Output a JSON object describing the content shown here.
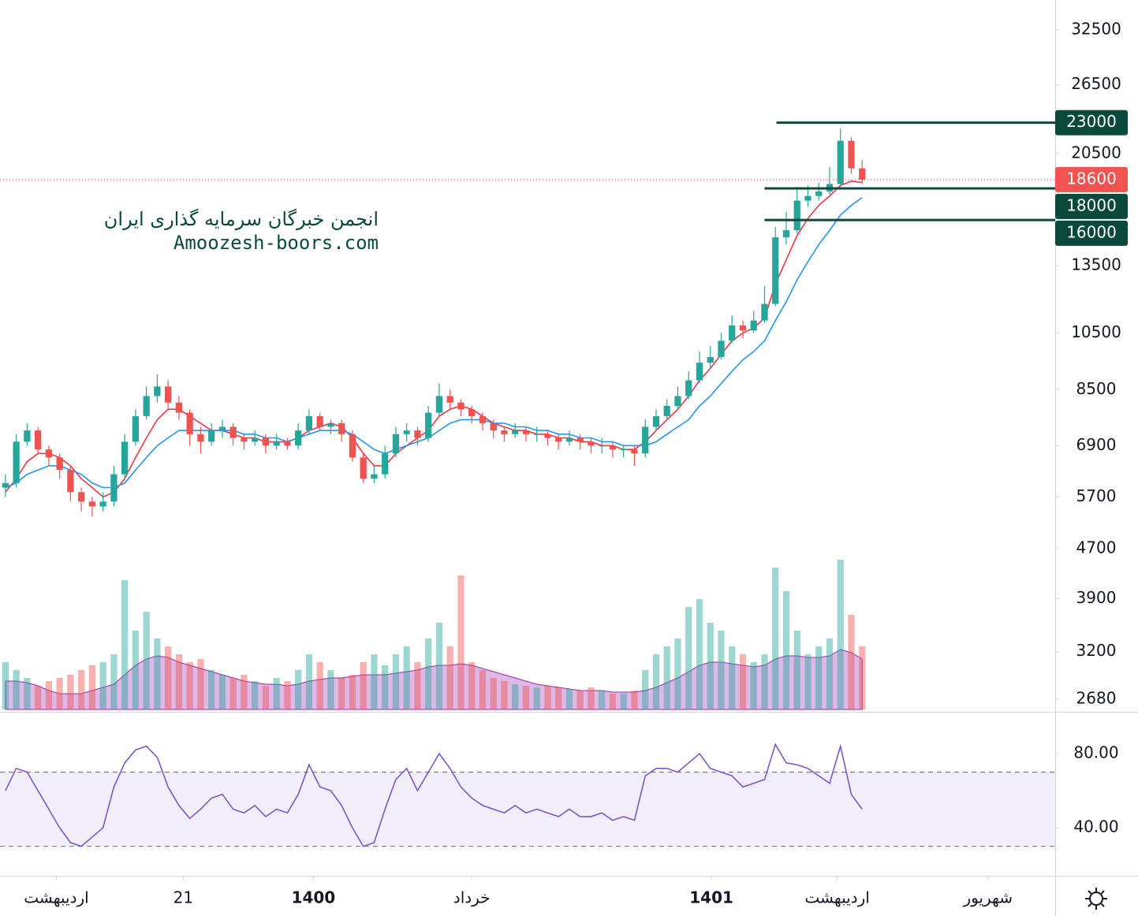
{
  "watermark": {
    "line1": "انجمن خبرگان سرمایه گذاری ایران",
    "line2": "Amoozesh-boors.com"
  },
  "chart_data": [
    {
      "type": "candlestick",
      "log_scale": true,
      "xlim": [
        0,
        97.3
      ],
      "ylim": [
        2557,
        36340
      ],
      "yticks": [
        2680,
        3200,
        3900,
        4700,
        5700,
        6900,
        8500,
        10500,
        13500,
        20500,
        26500,
        32500
      ],
      "up_color": "#26a69a",
      "down_color": "#ef5350",
      "open": [
        5900,
        6000,
        7000,
        7300,
        6800,
        6600,
        6300,
        5800,
        5600,
        5500,
        5600,
        6200,
        7000,
        7700,
        8300,
        8600,
        8100,
        7800,
        7200,
        7000,
        7300,
        7400,
        7100,
        7000,
        7100,
        6900,
        7000,
        6900,
        7300,
        7700,
        7400,
        7500,
        7200,
        6600,
        6100,
        6200,
        6700,
        7200,
        7300,
        7100,
        7800,
        8300,
        8100,
        7900,
        7700,
        7500,
        7300,
        7200,
        7300,
        7200,
        7200,
        7100,
        7000,
        7100,
        7000,
        6900,
        6900,
        6800,
        6800,
        6700,
        7400,
        7700,
        8000,
        8300,
        8800,
        9400,
        9600,
        10200,
        10800,
        10600,
        11000,
        11700,
        15000,
        15400,
        17200,
        17500,
        17800,
        18300,
        21500,
        19400
      ],
      "high": [
        6200,
        7200,
        7500,
        7400,
        6900,
        6700,
        6400,
        5900,
        5700,
        5800,
        6400,
        7200,
        7900,
        8600,
        9000,
        8800,
        8300,
        7900,
        7400,
        7500,
        7600,
        7500,
        7200,
        7300,
        7200,
        7200,
        7100,
        7500,
        7900,
        7800,
        7600,
        7600,
        7300,
        6700,
        6400,
        6900,
        7400,
        7500,
        7400,
        8000,
        8700,
        8500,
        8200,
        8000,
        7800,
        7600,
        7400,
        7500,
        7400,
        7400,
        7300,
        7200,
        7300,
        7200,
        7100,
        7100,
        7000,
        6900,
        6900,
        7600,
        7900,
        8200,
        8600,
        9100,
        9800,
        10000,
        10500,
        11200,
        11000,
        11400,
        12500,
        15600,
        16500,
        18100,
        18200,
        18400,
        19500,
        22500,
        21800,
        20000
      ],
      "low": [
        5700,
        5900,
        6900,
        6700,
        6400,
        6100,
        5600,
        5400,
        5300,
        5400,
        5500,
        6100,
        6900,
        7600,
        8100,
        7900,
        7600,
        6900,
        6700,
        6900,
        7100,
        6900,
        6800,
        6900,
        6700,
        6800,
        6800,
        6800,
        7200,
        7300,
        7200,
        7000,
        6500,
        6000,
        6000,
        6100,
        6600,
        7000,
        6900,
        7000,
        7700,
        7900,
        7700,
        7500,
        7300,
        7100,
        7000,
        7100,
        7000,
        7000,
        6900,
        6800,
        6900,
        6800,
        6700,
        6700,
        6600,
        6600,
        6400,
        6600,
        7300,
        7600,
        7900,
        8200,
        8700,
        9200,
        9500,
        10100,
        10300,
        10500,
        10900,
        11600,
        14600,
        15200,
        16800,
        17200,
        17600,
        18100,
        19000,
        18300
      ],
      "close": [
        6000,
        7000,
        7300,
        6800,
        6600,
        6300,
        5800,
        5600,
        5500,
        5600,
        6200,
        7000,
        7700,
        8300,
        8600,
        8100,
        7800,
        7200,
        7000,
        7300,
        7400,
        7100,
        7000,
        7100,
        6900,
        7000,
        6900,
        7300,
        7700,
        7400,
        7500,
        7200,
        6600,
        6100,
        6200,
        6700,
        7200,
        7300,
        7100,
        7800,
        8300,
        8100,
        7900,
        7700,
        7500,
        7300,
        7200,
        7300,
        7200,
        7200,
        7100,
        7000,
        7100,
        7000,
        6900,
        6900,
        6800,
        6800,
        6700,
        7400,
        7700,
        8000,
        8300,
        8800,
        9400,
        9600,
        10200,
        10800,
        10600,
        11000,
        11700,
        15000,
        15400,
        17200,
        17500,
        17800,
        18300,
        21500,
        19400,
        18600
      ],
      "ma_lines": [
        {
          "color": "#f23645",
          "values": [
            5800,
            6100,
            6500,
            6700,
            6700,
            6600,
            6400,
            6100,
            5900,
            5700,
            5800,
            6100,
            6600,
            7100,
            7600,
            7900,
            7900,
            7700,
            7500,
            7300,
            7300,
            7200,
            7100,
            7100,
            7000,
            7000,
            7000,
            7100,
            7300,
            7400,
            7500,
            7400,
            7100,
            6700,
            6400,
            6400,
            6700,
            6900,
            7100,
            7300,
            7700,
            7900,
            8000,
            7900,
            7700,
            7500,
            7400,
            7300,
            7300,
            7200,
            7200,
            7100,
            7100,
            7000,
            7000,
            6900,
            6900,
            6800,
            6800,
            7000,
            7300,
            7600,
            7900,
            8300,
            8800,
            9200,
            9700,
            10200,
            10500,
            10700,
            11100,
            12600,
            13800,
            15100,
            16100,
            16900,
            17500,
            18200,
            18500,
            18400
          ]
        },
        {
          "color": "#2196f3",
          "values": [
            5900,
            6000,
            6200,
            6300,
            6400,
            6400,
            6300,
            6200,
            6000,
            5900,
            5900,
            6000,
            6300,
            6600,
            6900,
            7100,
            7300,
            7300,
            7300,
            7300,
            7300,
            7300,
            7200,
            7200,
            7100,
            7100,
            7000,
            7100,
            7200,
            7300,
            7300,
            7300,
            7200,
            7000,
            6800,
            6700,
            6800,
            6900,
            7000,
            7100,
            7300,
            7500,
            7600,
            7600,
            7600,
            7500,
            7500,
            7400,
            7400,
            7300,
            7300,
            7200,
            7200,
            7100,
            7100,
            7000,
            7000,
            6900,
            6900,
            6900,
            7000,
            7200,
            7400,
            7600,
            8000,
            8300,
            8700,
            9100,
            9500,
            9800,
            10200,
            11000,
            11800,
            12800,
            13700,
            14600,
            15400,
            16300,
            16900,
            17400
          ]
        }
      ],
      "levels": [
        {
          "value": 23000,
          "start": 71.6
        },
        {
          "value": 18000,
          "start": 70.5
        },
        {
          "value": 16000,
          "start": 70.5
        }
      ],
      "level_color": "#0b4a3a",
      "last_price": 18600,
      "last_price_color": "#f05350"
    },
    {
      "type": "volume",
      "vlim": [
        0,
        100
      ],
      "up_color": "#26a69a",
      "down_color": "#ef5350",
      "ma_color": "#9c27b0",
      "values": [
        30,
        25,
        20,
        15,
        18,
        20,
        22,
        25,
        28,
        30,
        35,
        82,
        50,
        62,
        45,
        40,
        35,
        30,
        32,
        25,
        22,
        20,
        22,
        18,
        15,
        20,
        18,
        25,
        35,
        30,
        25,
        20,
        22,
        30,
        35,
        28,
        35,
        40,
        30,
        45,
        55,
        40,
        85,
        30,
        25,
        20,
        18,
        16,
        15,
        14,
        15,
        14,
        13,
        12,
        14,
        12,
        10,
        10,
        12,
        25,
        35,
        40,
        45,
        65,
        70,
        55,
        50,
        40,
        35,
        30,
        35,
        90,
        75,
        50,
        35,
        40,
        45,
        95,
        60,
        40
      ],
      "ma": [
        18,
        18,
        17,
        15,
        12,
        10,
        10,
        10,
        12,
        14,
        16,
        22,
        28,
        32,
        34,
        33,
        30,
        28,
        26,
        24,
        22,
        20,
        18,
        17,
        16,
        16,
        15,
        16,
        18,
        19,
        20,
        20,
        21,
        22,
        22,
        22,
        23,
        24,
        25,
        27,
        28,
        28,
        29,
        28,
        26,
        24,
        22,
        20,
        18,
        16,
        15,
        14,
        13,
        12,
        12,
        12,
        11,
        11,
        11,
        12,
        14,
        17,
        20,
        24,
        28,
        30,
        30,
        29,
        28,
        27,
        28,
        32,
        34,
        34,
        33,
        33,
        34,
        38,
        36,
        32
      ]
    },
    {
      "type": "line",
      "color": "#7e57c2",
      "xlim": [
        0,
        97.3
      ],
      "ylim": [
        14.5,
        101.7
      ],
      "yticks": [
        {
          "value": 40,
          "label": "40.00"
        },
        {
          "value": 80,
          "label": "80.00"
        }
      ],
      "band": [
        30,
        70
      ],
      "values": [
        60,
        72,
        70,
        60,
        50,
        40,
        32,
        30,
        35,
        40,
        62,
        75,
        82,
        84,
        78,
        62,
        52,
        45,
        50,
        56,
        58,
        50,
        48,
        52,
        46,
        50,
        48,
        58,
        74,
        62,
        60,
        52,
        40,
        30,
        32,
        50,
        66,
        72,
        60,
        70,
        80,
        72,
        62,
        56,
        52,
        50,
        48,
        52,
        48,
        50,
        48,
        46,
        50,
        46,
        46,
        48,
        44,
        46,
        44,
        68,
        72,
        72,
        70,
        75,
        80,
        72,
        70,
        68,
        62,
        64,
        66,
        85,
        75,
        74,
        72,
        68,
        64,
        84,
        58,
        50
      ],
      "xticks": [
        {
          "value": 5.2,
          "label": "اردیبهشت"
        },
        {
          "value": 16.9,
          "label": "21"
        },
        {
          "value": 28.9,
          "label": "1400",
          "bold": true
        },
        {
          "value": 43.5,
          "label": "خرداد"
        },
        {
          "value": 65.6,
          "label": "1401",
          "bold": true
        },
        {
          "value": 77.2,
          "label": "اردیبهشت"
        },
        {
          "value": 91.1,
          "label": "شهریور"
        }
      ]
    }
  ]
}
